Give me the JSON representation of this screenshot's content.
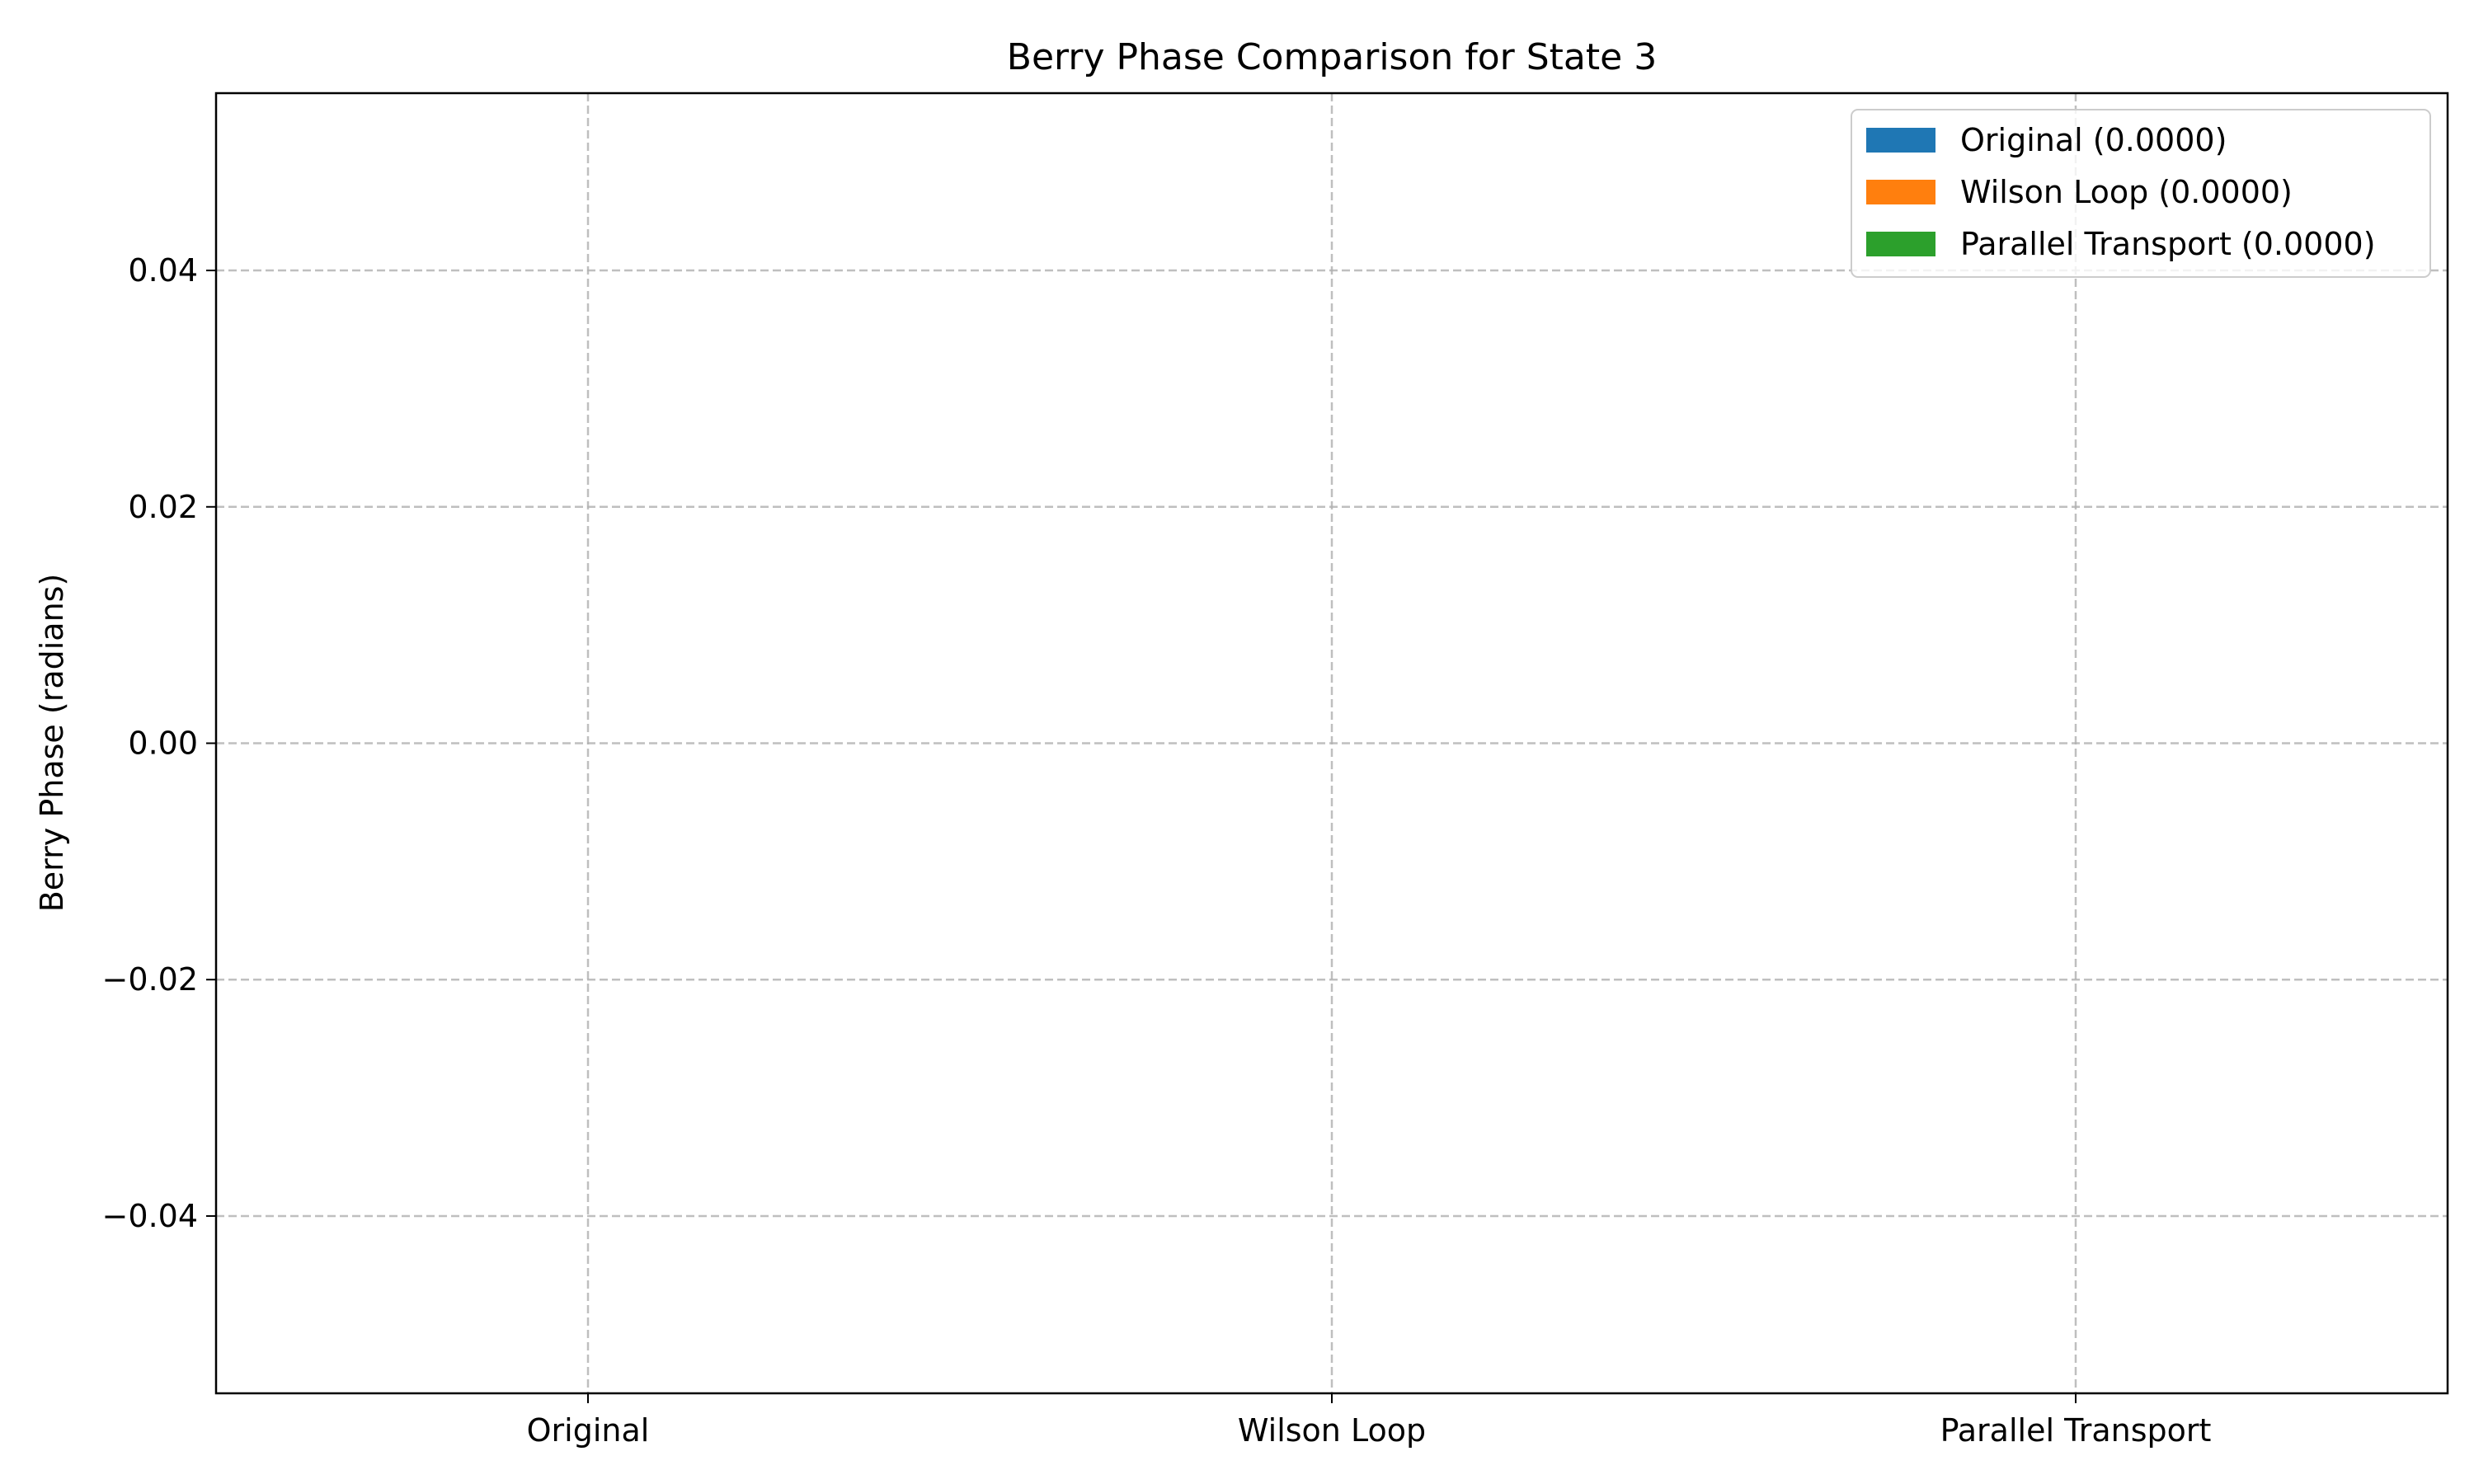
{
  "chart_data": {
    "type": "bar",
    "title": "Berry Phase Comparison for State 3",
    "xlabel": "",
    "ylabel": "Berry Phase (radians)",
    "categories": [
      "Original",
      "Wilson Loop",
      "Parallel Transport"
    ],
    "values": [
      0.0,
      0.0,
      0.0
    ],
    "colors": [
      "#1f77b4",
      "#ff7f0e",
      "#2ca02c"
    ],
    "ylim": [
      -0.055,
      0.055
    ],
    "yticks": [
      -0.04,
      -0.02,
      0.0,
      0.02,
      0.04
    ],
    "ytick_labels": [
      "−0.04",
      "−0.02",
      "0.00",
      "0.02",
      "0.04"
    ],
    "grid": true,
    "legend": {
      "placement": "top-right",
      "entries": [
        {
          "label": "Original (0.0000)",
          "color": "#1f77b4"
        },
        {
          "label": "Wilson Loop (0.0000)",
          "color": "#ff7f0e"
        },
        {
          "label": "Parallel Transport (0.0000)",
          "color": "#2ca02c"
        }
      ]
    }
  }
}
